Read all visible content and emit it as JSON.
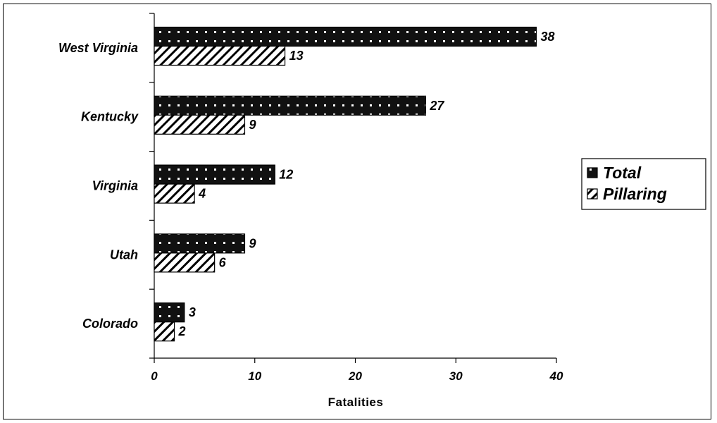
{
  "chart_data": {
    "type": "bar",
    "orientation": "horizontal",
    "categories": [
      "West Virginia",
      "Kentucky",
      "Virginia",
      "Utah",
      "Colorado"
    ],
    "series": [
      {
        "name": "Total",
        "values": [
          38,
          27,
          12,
          9,
          3
        ],
        "pattern": "dotted-dark"
      },
      {
        "name": "Pillaring",
        "values": [
          13,
          9,
          4,
          6,
          2
        ],
        "pattern": "diagonal-hatch"
      }
    ],
    "xlabel": "Fatalities",
    "xlim": [
      0,
      40
    ],
    "xticks": [
      0,
      10,
      20,
      30,
      40
    ],
    "legend_position": "right",
    "grid": false,
    "data_labels": true
  }
}
